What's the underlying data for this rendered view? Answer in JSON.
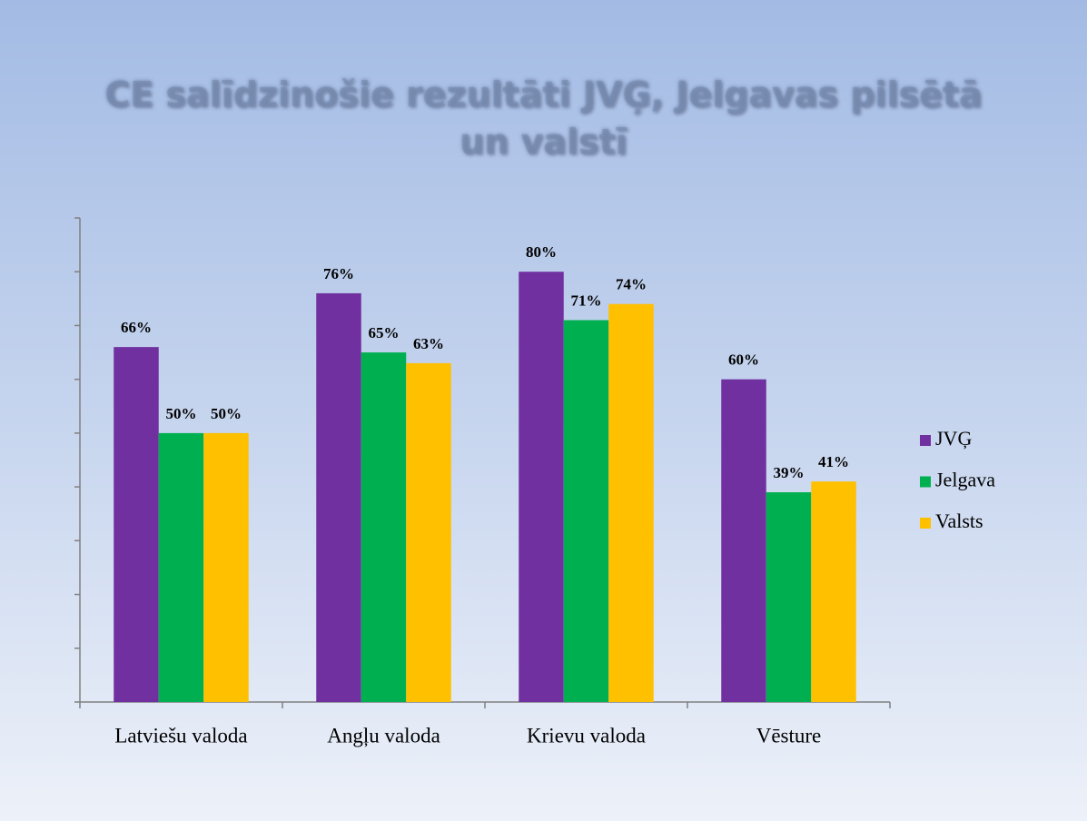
{
  "chart_data": {
    "type": "bar",
    "title": "CE salīdzinošie rezultāti JVĢ, Jelgavas pilsētā un valstī",
    "categories": [
      "Latviešu valoda",
      "Angļu valoda",
      "Krievu valoda",
      "Vēsture"
    ],
    "series": [
      {
        "name": "JVĢ",
        "color": "#7030a0",
        "values": [
          66,
          76,
          80,
          60
        ],
        "value_labels": [
          "66%",
          "76%",
          "80%",
          "60%"
        ]
      },
      {
        "name": "Jelgava",
        "color": "#00b050",
        "values": [
          50,
          65,
          71,
          39
        ],
        "value_labels": [
          "50%",
          "65%",
          "71%",
          "39%"
        ]
      },
      {
        "name": "Valsts",
        "color": "#ffc000",
        "values": [
          50,
          63,
          74,
          41
        ],
        "value_labels": [
          "50%",
          "63%",
          "74%",
          "41%"
        ]
      }
    ],
    "ylim": [
      0,
      90
    ],
    "yticks": [
      0,
      10,
      20,
      30,
      40,
      50,
      60,
      70,
      80,
      90
    ],
    "legend": "right"
  }
}
